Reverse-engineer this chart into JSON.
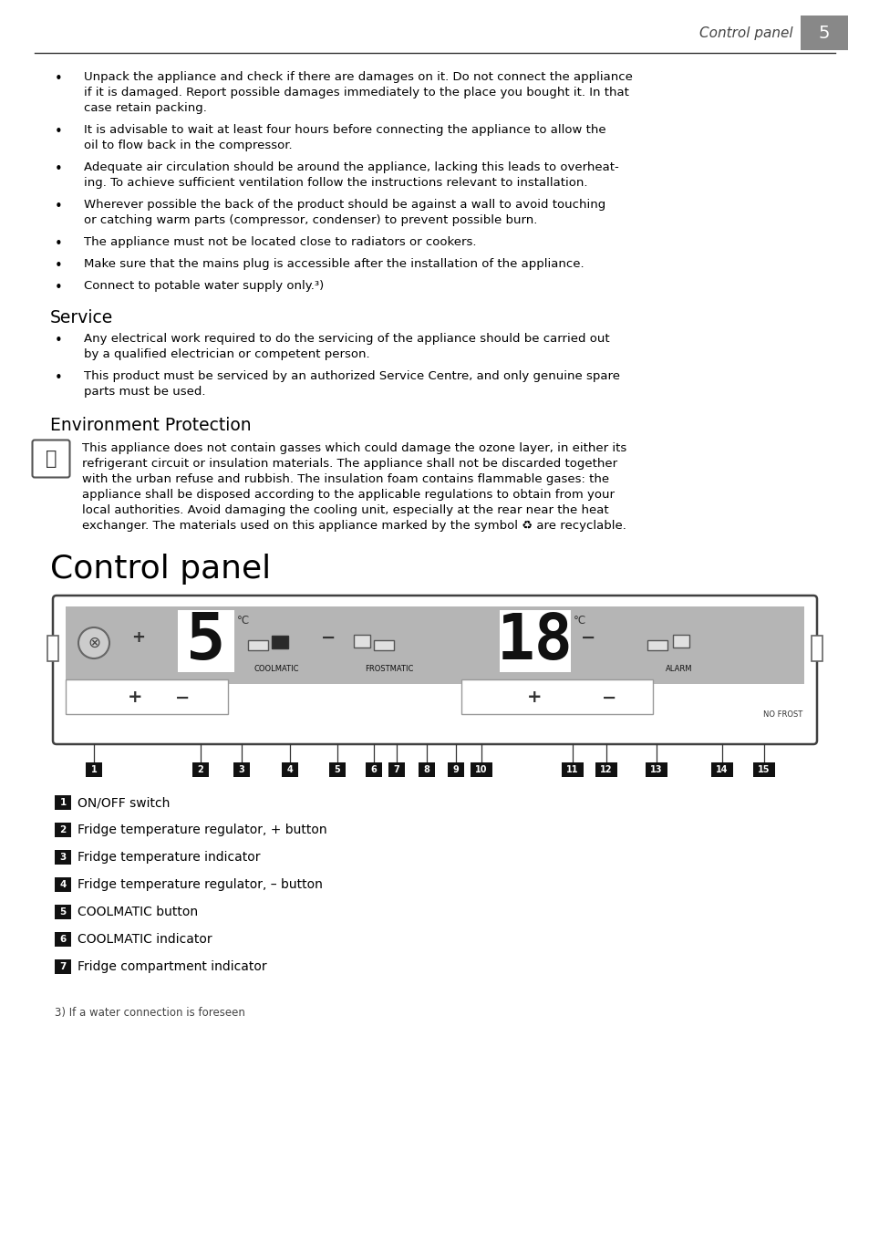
{
  "page_header": "Control panel",
  "page_number": "5",
  "bullet_points": [
    [
      "Unpack the appliance and check if there are damages on it. Do not connect the appliance",
      "if it is damaged. Report possible damages immediately to the place you bought it. In that",
      "case retain packing."
    ],
    [
      "It is advisable to wait at least four hours before connecting the appliance to allow the",
      "oil to flow back in the compressor."
    ],
    [
      "Adequate air circulation should be around the appliance, lacking this leads to overheat-",
      "ing. To achieve sufficient ventilation follow the instructions relevant to installation."
    ],
    [
      "Wherever possible the back of the product should be against a wall to avoid touching",
      "or catching warm parts (compressor, condenser) to prevent possible burn."
    ],
    [
      "The appliance must not be located close to radiators or cookers."
    ],
    [
      "Make sure that the mains plug is accessible after the installation of the appliance."
    ],
    [
      "Connect to potable water supply only.³)"
    ]
  ],
  "section_service": "Service",
  "service_bullets": [
    [
      "Any electrical work required to do the servicing of the appliance should be carried out",
      "by a qualified electrician or competent person."
    ],
    [
      "This product must be serviced by an authorized Service Centre, and only genuine spare",
      "parts must be used."
    ]
  ],
  "section_environment": "Environment Protection",
  "env_lines": [
    "This appliance does not contain gasses which could damage the ozone layer, in either its",
    "refrigerant circuit or insulation materials. The appliance shall not be discarded together",
    "with the urban refuse and rubbish. The insulation foam contains flammable gases: the",
    "appliance shall be disposed according to the applicable regulations to obtain from your",
    "local authorities. Avoid damaging the cooling unit, especially at the rear near the heat",
    "exchanger. The materials used on this appliance marked by the symbol ♻ are recyclable."
  ],
  "section_control": "Control panel",
  "legend_items": [
    {
      "num": "1",
      "text": "ON/OFF switch"
    },
    {
      "num": "2",
      "text": "Fridge temperature regulator, + button"
    },
    {
      "num": "3",
      "text": "Fridge temperature indicator"
    },
    {
      "num": "4",
      "text": "Fridge temperature regulator, – button"
    },
    {
      "num": "5",
      "text": "COOLMATIC button"
    },
    {
      "num": "6",
      "text": "COOLMATIC indicator"
    },
    {
      "num": "7",
      "text": "Fridge compartment indicator"
    }
  ],
  "footnote": "3) If a water connection is foreseen",
  "bg_color": "#ffffff",
  "text_color": "#000000",
  "gray_panel": "#b0b0b0",
  "panel_border": "#404040",
  "white": "#ffffff",
  "black": "#111111",
  "dark_gray": "#555555"
}
